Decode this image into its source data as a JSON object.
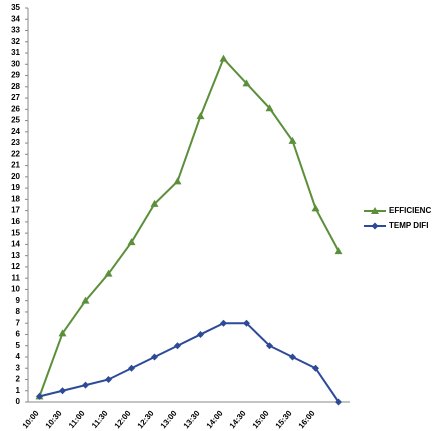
{
  "chart_data": {
    "type": "line",
    "categories": [
      "10:00",
      "10:30",
      "11:00",
      "11:30",
      "12:00",
      "12:30",
      "13:00",
      "13:30",
      "14:00",
      "14:30",
      "15:00",
      "15:30",
      "16:00",
      null
    ],
    "series": [
      {
        "name": "EFFICIENC",
        "color": "#5b8f3a",
        "values": [
          0.5,
          6.1,
          9,
          11.4,
          14.2,
          17.6,
          19.6,
          25.4,
          30.5,
          28.3,
          26.1,
          23.2,
          17.2,
          13.4
        ]
      },
      {
        "name": "TEMP DIFI",
        "color": "#2d4a99",
        "values": [
          0.5,
          1,
          1.5,
          2,
          3,
          4,
          5,
          6,
          7,
          7,
          5,
          4,
          3,
          0
        ]
      }
    ],
    "ylim": [
      0,
      35
    ],
    "yticks": [
      0,
      1,
      2,
      3,
      4,
      5,
      6,
      7,
      8,
      9,
      10,
      11,
      12,
      13,
      14,
      15,
      16,
      17,
      18,
      19,
      20,
      21,
      22,
      23,
      24,
      25,
      26,
      27,
      28,
      29,
      30,
      31,
      32,
      33,
      34,
      35
    ],
    "legend": "right"
  }
}
